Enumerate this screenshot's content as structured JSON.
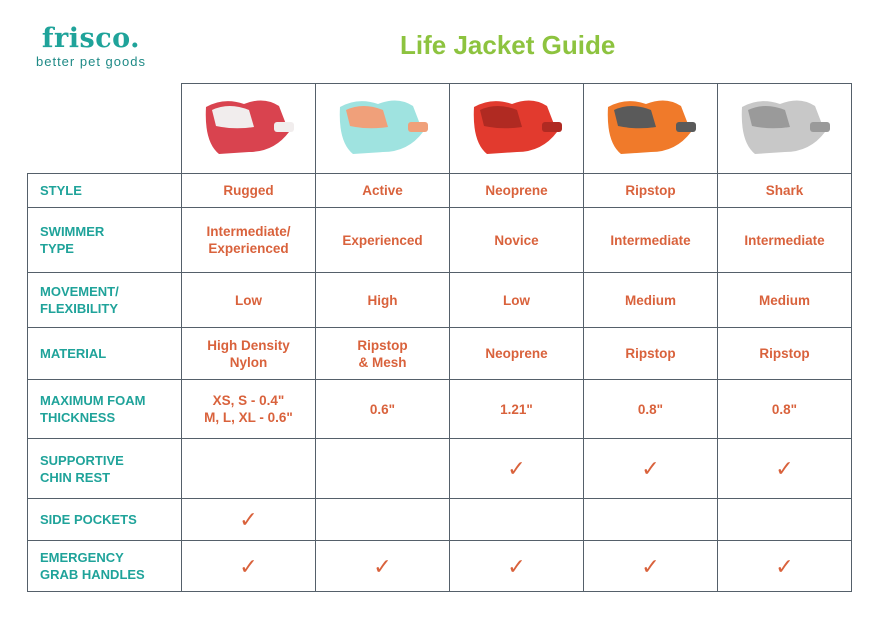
{
  "logo": {
    "brand": "frisco.",
    "tagline": "better pet goods"
  },
  "title": "Life Jacket Guide",
  "colors": {
    "label": "#1fa39a",
    "value": "#d9623c",
    "title": "#8dc33f"
  },
  "products": [
    {
      "image": "red-life-jacket",
      "colors": [
        "#d9434f",
        "#f1eded"
      ]
    },
    {
      "image": "aqua-life-jacket",
      "colors": [
        "#9fe3e0",
        "#f0a07a"
      ]
    },
    {
      "image": "red-neoprene-life-jacket",
      "colors": [
        "#e23a2e",
        "#b02a22"
      ]
    },
    {
      "image": "orange-grey-life-jacket",
      "colors": [
        "#f07a2a",
        "#5a5a5a"
      ]
    },
    {
      "image": "grey-shark-life-jacket",
      "colors": [
        "#c8c8c8",
        "#9a9a9a"
      ]
    }
  ],
  "rows": [
    {
      "label": "STYLE",
      "values": [
        "Rugged",
        "Active",
        "Neoprene",
        "Ripstop",
        "Shark"
      ]
    },
    {
      "label": "SWIMMER\nTYPE",
      "values": [
        "Intermediate/\nExperienced",
        "Experienced",
        "Novice",
        "Intermediate",
        "Intermediate"
      ]
    },
    {
      "label": "MOVEMENT/\nFLEXIBILITY",
      "values": [
        "Low",
        "High",
        "Low",
        "Medium",
        "Medium"
      ]
    },
    {
      "label": "MATERIAL",
      "values": [
        "High Density\nNylon",
        "Ripstop\n& Mesh",
        "Neoprene",
        "Ripstop",
        "Ripstop"
      ]
    },
    {
      "label": "MAXIMUM FOAM\nTHICKNESS",
      "values": [
        "XS, S - 0.4\"\nM, L, XL - 0.6\"",
        "0.6\"",
        "1.21\"",
        "0.8\"",
        "0.8\""
      ]
    },
    {
      "label": "SUPPORTIVE\nCHIN REST",
      "values": [
        "",
        "",
        "✓",
        "✓",
        "✓"
      ]
    },
    {
      "label": "SIDE POCKETS",
      "values": [
        "✓",
        "",
        "",
        "",
        ""
      ]
    },
    {
      "label": "EMERGENCY\nGRAB HANDLES",
      "values": [
        "✓",
        "✓",
        "✓",
        "✓",
        "✓"
      ]
    }
  ]
}
